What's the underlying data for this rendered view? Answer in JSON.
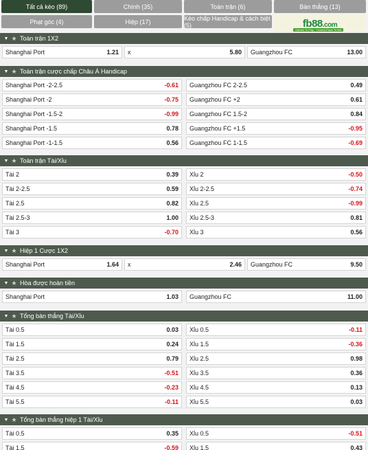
{
  "tabs": [
    {
      "label": "Tất cả kèo (89)",
      "active": true
    },
    {
      "label": "Chính (35)"
    },
    {
      "label": "Toàn trận (6)"
    },
    {
      "label": "Bàn thắng (13)"
    },
    {
      "label": "Phạt góc (4)"
    },
    {
      "label": "Hiệp (17)"
    },
    {
      "label": "Kèo chấp Handicap & cách biệt (5)"
    }
  ],
  "logo": {
    "text": "fb88",
    "suffix": ".com",
    "tagline": "Games To Play · Trusted Place To Bet"
  },
  "sections": [
    {
      "title": "Toàn trận 1X2",
      "rows": [
        [
          {
            "label": "Shanghai Port",
            "value": "1.21"
          },
          {
            "label": "x",
            "value": "5.80"
          },
          {
            "label": "Guangzhou FC",
            "value": "13.00"
          }
        ]
      ]
    },
    {
      "title": "Toàn trận cược chấp Châu Á Handicap",
      "rows": [
        [
          {
            "label": "Shanghai Port -2-2.5",
            "value": "-0.61"
          },
          {
            "label": "Guangzhou FC 2-2.5",
            "value": "0.49"
          }
        ],
        [
          {
            "label": "Shanghai Port -2",
            "value": "-0.75"
          },
          {
            "label": "Guangzhou FC +2",
            "value": "0.61"
          }
        ],
        [
          {
            "label": "Shanghai Port -1.5-2",
            "value": "-0.99"
          },
          {
            "label": "Guangzhou FC 1.5-2",
            "value": "0.84"
          }
        ],
        [
          {
            "label": "Shanghai Port -1.5",
            "value": "0.78"
          },
          {
            "label": "Guangzhou FC +1.5",
            "value": "-0.95"
          }
        ],
        [
          {
            "label": "Shanghai Port -1-1.5",
            "value": "0.56"
          },
          {
            "label": "Guangzhou FC 1-1.5",
            "value": "-0.69"
          }
        ]
      ]
    },
    {
      "title": "Toàn trận Tài/Xỉu",
      "rows": [
        [
          {
            "label": "Tài 2",
            "value": "0.39"
          },
          {
            "label": "Xỉu 2",
            "value": "-0.50"
          }
        ],
        [
          {
            "label": "Tài 2-2.5",
            "value": "0.59"
          },
          {
            "label": "Xỉu 2-2.5",
            "value": "-0.74"
          }
        ],
        [
          {
            "label": "Tài 2.5",
            "value": "0.82"
          },
          {
            "label": "Xỉu 2.5",
            "value": "-0.99"
          }
        ],
        [
          {
            "label": "Tài 2.5-3",
            "value": "1.00"
          },
          {
            "label": "Xỉu 2.5-3",
            "value": "0.81"
          }
        ],
        [
          {
            "label": "Tài 3",
            "value": "-0.70"
          },
          {
            "label": "Xỉu 3",
            "value": "0.56"
          }
        ]
      ]
    },
    {
      "title": "Hiệp 1 Cược 1X2",
      "rows": [
        [
          {
            "label": "Shanghai Port",
            "value": "1.64"
          },
          {
            "label": "x",
            "value": "2.46"
          },
          {
            "label": "Guangzhou FC",
            "value": "9.50"
          }
        ]
      ]
    },
    {
      "title": "Hòa được hoàn tiền",
      "rows": [
        [
          {
            "label": "Shanghai Port",
            "value": "1.03"
          },
          {
            "label": "Guangzhou FC",
            "value": "11.00"
          }
        ]
      ]
    },
    {
      "title": "Tổng bàn thắng Tài/Xỉu",
      "rows": [
        [
          {
            "label": "Tài 0.5",
            "value": "0.03"
          },
          {
            "label": "Xỉu 0.5",
            "value": "-0.11"
          }
        ],
        [
          {
            "label": "Tài 1.5",
            "value": "0.24"
          },
          {
            "label": "Xỉu 1.5",
            "value": "-0.36"
          }
        ],
        [
          {
            "label": "Tài 2.5",
            "value": "0.79"
          },
          {
            "label": "Xỉu 2.5",
            "value": "0.98"
          }
        ],
        [
          {
            "label": "Tài 3.5",
            "value": "-0.51"
          },
          {
            "label": "Xỉu 3.5",
            "value": "0.36"
          }
        ],
        [
          {
            "label": "Tài 4.5",
            "value": "-0.23"
          },
          {
            "label": "Xỉu 4.5",
            "value": "0.13"
          }
        ],
        [
          {
            "label": "Tài 5.5",
            "value": "-0.11"
          },
          {
            "label": "Xỉu 5.5",
            "value": "0.03"
          }
        ]
      ]
    },
    {
      "title": "Tổng bàn thắng hiệp 1 Tài/Xỉu",
      "rows": [
        [
          {
            "label": "Tài 0.5",
            "value": "0.35"
          },
          {
            "label": "Xỉu 0.5",
            "value": "-0.51"
          }
        ],
        [
          {
            "label": "Tài 1.5",
            "value": "-0.59"
          },
          {
            "label": "Xỉu 1.5",
            "value": "0.43"
          }
        ]
      ]
    }
  ],
  "colors": {
    "active_tab": "#2f4a32",
    "tab": "#9c9c9c",
    "header": "#4e5a4d",
    "negative": "#d7141a"
  }
}
